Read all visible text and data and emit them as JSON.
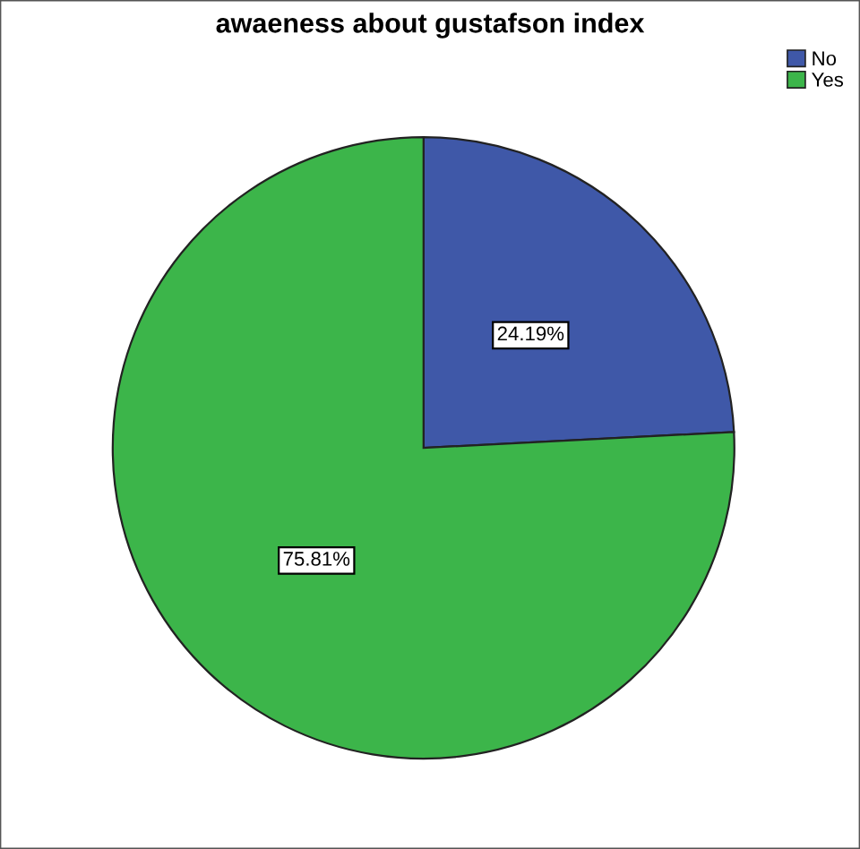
{
  "chart_data": {
    "type": "pie",
    "title": "awaeness about gustafson index",
    "categories": [
      "No",
      "Yes"
    ],
    "values": [
      24.19,
      75.81
    ],
    "value_labels": [
      "24.19%",
      "75.81%"
    ],
    "colors": [
      "#3f58a8",
      "#3cb54a"
    ],
    "legend": "top right"
  }
}
